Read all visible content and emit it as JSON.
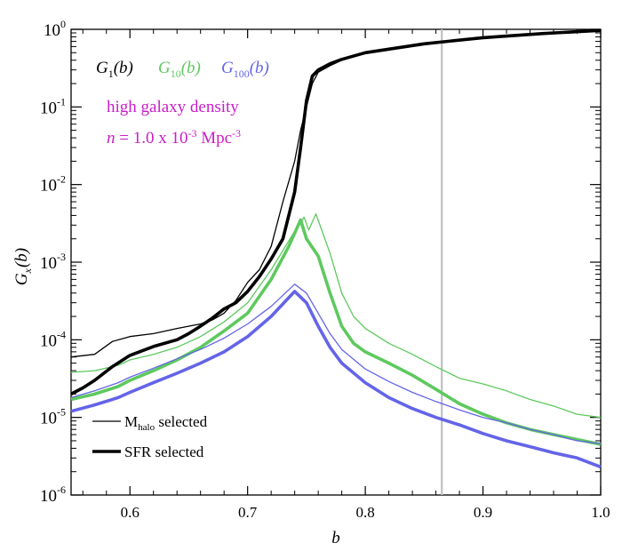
{
  "chart_data": {
    "type": "line",
    "xlabel": "b",
    "ylabel_main": "G",
    "ylabel_sub": "x",
    "ylabel_arg": "(b)",
    "xlim": [
      0.55,
      1.0
    ],
    "ylim": [
      1e-06,
      1
    ],
    "yscale": "log",
    "grid": false,
    "x_ticks": [
      {
        "value": 0.6,
        "label": "0.6"
      },
      {
        "value": 0.7,
        "label": "0.7"
      },
      {
        "value": 0.8,
        "label": "0.8"
      },
      {
        "value": 0.9,
        "label": "0.9"
      },
      {
        "value": 1.0,
        "label": "1.0"
      }
    ],
    "y_ticks": [
      {
        "exp": 0,
        "base": "10",
        "sup": "0"
      },
      {
        "exp": -1,
        "base": "10",
        "sup": "-1"
      },
      {
        "exp": -2,
        "base": "10",
        "sup": "-2"
      },
      {
        "exp": -3,
        "base": "10",
        "sup": "-3"
      },
      {
        "exp": -4,
        "base": "10",
        "sup": "-4"
      },
      {
        "exp": -5,
        "base": "10",
        "sup": "-5"
      },
      {
        "exp": -6,
        "base": "10",
        "sup": "-6"
      }
    ],
    "vline": {
      "x": 0.865,
      "color": "#c0c0c0"
    },
    "colors": {
      "g1": "#000000",
      "g10": "#5ec95e",
      "g100": "#6464e8",
      "annotation": "#c81ec8"
    },
    "series_labels": [
      {
        "key": "g1",
        "main": "G",
        "sub": "1",
        "arg": "(b)"
      },
      {
        "key": "g10",
        "main": "G",
        "sub": "10",
        "arg": "(b)"
      },
      {
        "key": "g100",
        "main": "G",
        "sub": "100",
        "arg": "(b)"
      }
    ],
    "annotation": {
      "line1": "high galaxy density",
      "line2_n": "n",
      "line2_eq": " = 1.0 x 10",
      "line2_exp": "-3",
      "line2_unit": " Mpc",
      "line2_unit_exp": "-3"
    },
    "legend": {
      "placement": "bottom-left",
      "thin": {
        "main": "M",
        "sub": "halo",
        "rest": " selected"
      },
      "thick": {
        "label": "SFR selected"
      }
    },
    "series": [
      {
        "key": "g1",
        "style": "thin",
        "color": "#000000",
        "points": [
          [
            0.55,
            6e-05
          ],
          [
            0.57,
            6.5e-05
          ],
          [
            0.585,
            9.5e-05
          ],
          [
            0.6,
            0.00011
          ],
          [
            0.62,
            0.00012
          ],
          [
            0.64,
            0.00014
          ],
          [
            0.66,
            0.00016
          ],
          [
            0.67,
            0.00018
          ],
          [
            0.68,
            0.00022
          ],
          [
            0.69,
            0.00032
          ],
          [
            0.7,
            0.00055
          ],
          [
            0.71,
            0.0008
          ],
          [
            0.72,
            0.0016
          ],
          [
            0.73,
            0.006
          ],
          [
            0.74,
            0.02
          ],
          [
            0.745,
            0.05
          ],
          [
            0.75,
            0.1
          ],
          [
            0.755,
            0.2
          ],
          [
            0.76,
            0.28
          ],
          [
            0.77,
            0.34
          ],
          [
            0.78,
            0.4
          ],
          [
            0.8,
            0.5
          ],
          [
            0.85,
            0.65
          ],
          [
            0.9,
            0.78
          ],
          [
            0.95,
            0.88
          ],
          [
            1.0,
            0.97
          ]
        ]
      },
      {
        "key": "g1",
        "style": "thick",
        "color": "#000000",
        "points": [
          [
            0.55,
            2e-05
          ],
          [
            0.56,
            2.4e-05
          ],
          [
            0.57,
            3e-05
          ],
          [
            0.585,
            4.5e-05
          ],
          [
            0.6,
            6.3e-05
          ],
          [
            0.62,
            8.2e-05
          ],
          [
            0.64,
            0.0001
          ],
          [
            0.65,
            0.00012
          ],
          [
            0.66,
            0.00015
          ],
          [
            0.67,
            0.00019
          ],
          [
            0.68,
            0.00025
          ],
          [
            0.69,
            0.0003
          ],
          [
            0.7,
            0.00042
          ],
          [
            0.71,
            0.00065
          ],
          [
            0.72,
            0.0011
          ],
          [
            0.73,
            0.002
          ],
          [
            0.74,
            0.008
          ],
          [
            0.745,
            0.03
          ],
          [
            0.75,
            0.12
          ],
          [
            0.755,
            0.25
          ],
          [
            0.76,
            0.3
          ],
          [
            0.77,
            0.36
          ],
          [
            0.78,
            0.41
          ],
          [
            0.8,
            0.5
          ],
          [
            0.85,
            0.65
          ],
          [
            0.9,
            0.78
          ],
          [
            0.95,
            0.88
          ],
          [
            1.0,
            0.97
          ]
        ]
      },
      {
        "key": "g10",
        "style": "thin",
        "color": "#5ec95e",
        "points": [
          [
            0.55,
            3.8e-05
          ],
          [
            0.57,
            4e-05
          ],
          [
            0.59,
            4.7e-05
          ],
          [
            0.6,
            5.5e-05
          ],
          [
            0.62,
            6.5e-05
          ],
          [
            0.64,
            8e-05
          ],
          [
            0.66,
            0.00011
          ],
          [
            0.68,
            0.00017
          ],
          [
            0.7,
            0.0003
          ],
          [
            0.72,
            0.0008
          ],
          [
            0.74,
            0.0025
          ],
          [
            0.748,
            0.0038
          ],
          [
            0.752,
            0.0026
          ],
          [
            0.758,
            0.0042
          ],
          [
            0.77,
            0.0013
          ],
          [
            0.78,
            0.0004
          ],
          [
            0.79,
            0.0002
          ],
          [
            0.8,
            0.00014
          ],
          [
            0.82,
            9e-05
          ],
          [
            0.84,
            6.5e-05
          ],
          [
            0.86,
            4.5e-05
          ],
          [
            0.88,
            3.2e-05
          ],
          [
            0.9,
            2.7e-05
          ],
          [
            0.92,
            2.2e-05
          ],
          [
            0.94,
            1.7e-05
          ],
          [
            0.96,
            1.4e-05
          ],
          [
            0.98,
            1.1e-05
          ],
          [
            1.0,
            1e-05
          ]
        ]
      },
      {
        "key": "g10",
        "style": "thick",
        "color": "#5ec95e",
        "points": [
          [
            0.55,
            1.7e-05
          ],
          [
            0.57,
            2e-05
          ],
          [
            0.59,
            2.5e-05
          ],
          [
            0.6,
            3e-05
          ],
          [
            0.62,
            4e-05
          ],
          [
            0.64,
            5.5e-05
          ],
          [
            0.66,
            8e-05
          ],
          [
            0.68,
            0.00013
          ],
          [
            0.7,
            0.00022
          ],
          [
            0.72,
            0.0006
          ],
          [
            0.735,
            0.0016
          ],
          [
            0.745,
            0.0035
          ],
          [
            0.75,
            0.002
          ],
          [
            0.76,
            0.0012
          ],
          [
            0.77,
            0.0004
          ],
          [
            0.78,
            0.00015
          ],
          [
            0.79,
            9e-05
          ],
          [
            0.8,
            7e-05
          ],
          [
            0.82,
            5e-05
          ],
          [
            0.84,
            3.5e-05
          ],
          [
            0.86,
            2.3e-05
          ],
          [
            0.88,
            1.5e-05
          ],
          [
            0.9,
            1.1e-05
          ],
          [
            0.92,
            8.5e-06
          ],
          [
            0.94,
            7e-06
          ],
          [
            0.96,
            6e-06
          ],
          [
            0.98,
            5.2e-06
          ],
          [
            1.0,
            4.5e-06
          ]
        ]
      },
      {
        "key": "g100",
        "style": "thin",
        "color": "#6464e8",
        "points": [
          [
            0.55,
            1.8e-05
          ],
          [
            0.57,
            2.2e-05
          ],
          [
            0.59,
            2.8e-05
          ],
          [
            0.6,
            3.3e-05
          ],
          [
            0.62,
            4.3e-05
          ],
          [
            0.64,
            5.7e-05
          ],
          [
            0.66,
            7.5e-05
          ],
          [
            0.68,
            0.000105
          ],
          [
            0.7,
            0.00016
          ],
          [
            0.72,
            0.00027
          ],
          [
            0.74,
            0.00052
          ],
          [
            0.75,
            0.0004
          ],
          [
            0.76,
            0.00022
          ],
          [
            0.77,
            0.00012
          ],
          [
            0.78,
            7.5e-05
          ],
          [
            0.8,
            4.2e-05
          ],
          [
            0.82,
            2.9e-05
          ],
          [
            0.84,
            2.1e-05
          ],
          [
            0.86,
            1.6e-05
          ],
          [
            0.88,
            1.25e-05
          ],
          [
            0.9,
            1e-05
          ],
          [
            0.92,
            8.5e-06
          ],
          [
            0.94,
            7e-06
          ],
          [
            0.96,
            6e-06
          ],
          [
            0.98,
            5e-06
          ],
          [
            1.0,
            4.6e-06
          ]
        ]
      },
      {
        "key": "g100",
        "style": "thick",
        "color": "#6464e8",
        "points": [
          [
            0.55,
            1.2e-05
          ],
          [
            0.57,
            1.45e-05
          ],
          [
            0.59,
            1.8e-05
          ],
          [
            0.6,
            2.1e-05
          ],
          [
            0.62,
            2.8e-05
          ],
          [
            0.64,
            3.7e-05
          ],
          [
            0.66,
            5e-05
          ],
          [
            0.68,
            7e-05
          ],
          [
            0.7,
            0.00011
          ],
          [
            0.72,
            0.0002
          ],
          [
            0.74,
            0.00042
          ],
          [
            0.75,
            0.0003
          ],
          [
            0.76,
            0.00015
          ],
          [
            0.77,
            8e-05
          ],
          [
            0.78,
            5e-05
          ],
          [
            0.8,
            2.8e-05
          ],
          [
            0.82,
            1.8e-05
          ],
          [
            0.84,
            1.3e-05
          ],
          [
            0.86,
            1e-05
          ],
          [
            0.88,
            8e-06
          ],
          [
            0.9,
            6.2e-06
          ],
          [
            0.92,
            5e-06
          ],
          [
            0.94,
            4.2e-06
          ],
          [
            0.96,
            3.5e-06
          ],
          [
            0.98,
            3e-06
          ],
          [
            1.0,
            2.3e-06
          ]
        ]
      }
    ]
  }
}
